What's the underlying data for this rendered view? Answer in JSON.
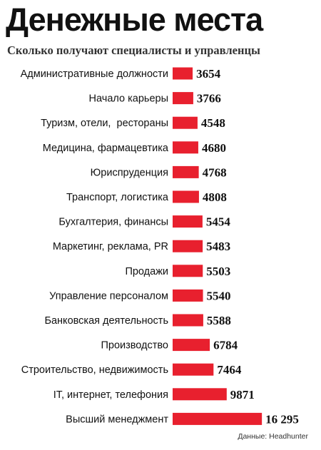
{
  "title": "Денежные места",
  "subtitle": "Сколько получают специалисты и управленцы",
  "source": "Данные: Headhunter",
  "bar_color": "#e8202e",
  "chart_data": {
    "type": "bar",
    "orientation": "horizontal",
    "title": "Денежные места",
    "subtitle": "Сколько получают специалисты и управленцы",
    "categories": [
      "Административные должности",
      "Начало карьеры",
      "Туризм, отели,  рестораны",
      "Медицина, фармацевтика",
      "Юриспруденция",
      "Транспорт, логистика",
      "Бухгалтерия, финансы",
      "Маркетинг, реклама, PR",
      "Продажи",
      "Управление персоналом",
      "Банковская деятельность",
      "Производство",
      "Строительство, недвижимость",
      "IT, интернет, телефония",
      "Высший менеджмент"
    ],
    "values": [
      3654,
      3766,
      4548,
      4680,
      4768,
      4808,
      5454,
      5483,
      5503,
      5540,
      5588,
      6784,
      7464,
      9871,
      16295
    ],
    "value_labels": [
      "3654",
      "3766",
      "4548",
      "4680",
      "4768",
      "4808",
      "5454",
      "5483",
      "5503",
      "5540",
      "5588",
      "6784",
      "7464",
      "9871",
      "16 295"
    ],
    "legend": "none",
    "grid": false
  }
}
